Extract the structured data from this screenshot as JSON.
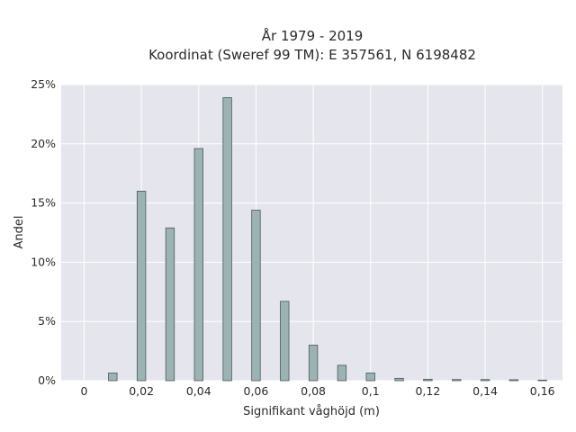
{
  "chart_data": {
    "type": "bar",
    "title": "År 1979 - 2019",
    "subtitle": "Koordinat (Sweref 99 TM): E 357561, N 6198482",
    "xlabel": "Signifikant våghöjd (m)",
    "ylabel": "Andel",
    "xlim": [
      -0.008,
      0.167
    ],
    "ylim": [
      0,
      0.25
    ],
    "x_ticks": [
      0,
      0.02,
      0.04,
      0.06,
      0.08,
      0.1,
      0.12,
      0.14,
      0.16
    ],
    "x_tick_labels": [
      "0",
      "0,02",
      "0,04",
      "0,06",
      "0,08",
      "0,1",
      "0,12",
      "0,14",
      "0,16"
    ],
    "y_ticks": [
      0,
      0.05,
      0.1,
      0.15,
      0.2,
      0.25
    ],
    "y_tick_labels": [
      "0%",
      "5%",
      "10%",
      "15%",
      "20%",
      "25%"
    ],
    "bar_width": 0.003,
    "grid": true,
    "colors": {
      "bar_fill": "#9bb3b3",
      "bar_stroke": "#4a5a5a",
      "plot_background": "#e5e5ee",
      "grid": "#ffffff"
    },
    "x": [
      0.01,
      0.02,
      0.03,
      0.04,
      0.05,
      0.06,
      0.07,
      0.08,
      0.09,
      0.1,
      0.11,
      0.12,
      0.13,
      0.14,
      0.15,
      0.16
    ],
    "values": [
      0.0065,
      0.16,
      0.129,
      0.196,
      0.239,
      0.144,
      0.067,
      0.03,
      0.013,
      0.0065,
      0.002,
      0.0012,
      0.001,
      0.001,
      0.0008,
      0.0005
    ]
  }
}
